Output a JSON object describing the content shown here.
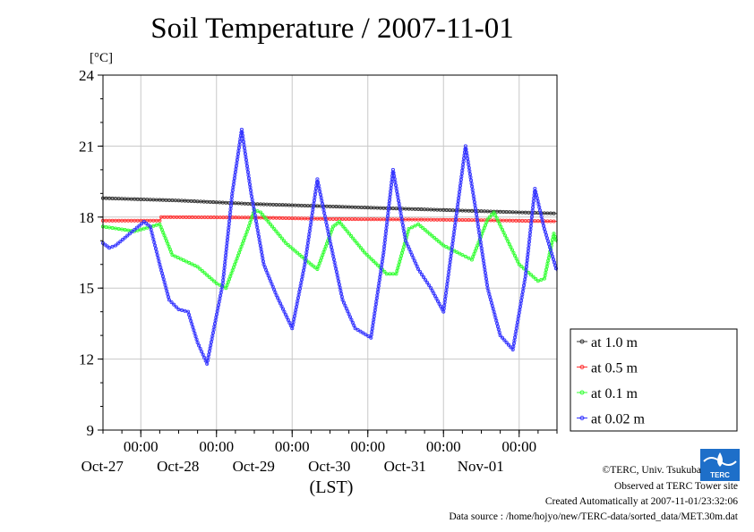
{
  "chart_data": {
    "type": "line",
    "title": "Soil Temperature / 2007-11-01",
    "ylabel": "[°C]",
    "xlabel": "(LST)",
    "ylim": [
      9,
      24
    ],
    "yticks": [
      "9",
      "12",
      "15",
      "18",
      "21",
      "24"
    ],
    "xlim": [
      "2007-10-26T12:00",
      "2007-11-01T12:00"
    ],
    "xticks": [
      {
        "t": "2007-10-27T00:00",
        "time": "00:00",
        "date": "Oct-27"
      },
      {
        "t": "2007-10-28T00:00",
        "time": "00:00",
        "date": "Oct-28"
      },
      {
        "t": "2007-10-29T00:00",
        "time": "00:00",
        "date": "Oct-29"
      },
      {
        "t": "2007-10-30T00:00",
        "time": "00:00",
        "date": "Oct-30"
      },
      {
        "t": "2007-10-31T00:00",
        "time": "00:00",
        "date": "Oct-31"
      },
      {
        "t": "2007-11-01T00:00",
        "time": "00:00",
        "date": "Nov-01"
      }
    ],
    "grid": true,
    "legend_position": "right",
    "series": [
      {
        "name": "at 1.0 m",
        "color": "#333333",
        "points": [
          [
            "2007-10-26T12:00",
            18.8
          ],
          [
            "2007-10-27T12:00",
            18.7
          ],
          [
            "2007-10-28T12:00",
            18.55
          ],
          [
            "2007-10-29T12:00",
            18.45
          ],
          [
            "2007-10-30T12:00",
            18.35
          ],
          [
            "2007-10-31T12:00",
            18.25
          ],
          [
            "2007-11-01T12:00",
            18.15
          ]
        ]
      },
      {
        "name": "at 0.5 m",
        "color": "#ff3333",
        "points": [
          [
            "2007-10-26T12:00",
            17.85
          ],
          [
            "2007-10-27T06:00",
            17.85
          ],
          [
            "2007-10-27T06:30",
            18.0
          ],
          [
            "2007-10-28T12:00",
            17.98
          ],
          [
            "2007-10-29T12:00",
            17.92
          ],
          [
            "2007-10-30T12:00",
            17.9
          ],
          [
            "2007-10-31T12:00",
            17.87
          ],
          [
            "2007-11-01T12:00",
            17.82
          ]
        ]
      },
      {
        "name": "at 0.1 m",
        "color": "#33ff33",
        "points": [
          [
            "2007-10-26T12:00",
            17.6
          ],
          [
            "2007-10-26T22:00",
            17.4
          ],
          [
            "2007-10-27T06:00",
            17.7
          ],
          [
            "2007-10-27T10:00",
            16.4
          ],
          [
            "2007-10-27T18:00",
            15.9
          ],
          [
            "2007-10-28T00:00",
            15.2
          ],
          [
            "2007-10-28T03:00",
            15.0
          ],
          [
            "2007-10-28T10:00",
            17.5
          ],
          [
            "2007-10-28T12:00",
            18.3
          ],
          [
            "2007-10-28T14:00",
            18.2
          ],
          [
            "2007-10-28T22:00",
            16.9
          ],
          [
            "2007-10-29T06:00",
            16.0
          ],
          [
            "2007-10-29T08:00",
            15.8
          ],
          [
            "2007-10-29T13:00",
            17.6
          ],
          [
            "2007-10-29T15:00",
            17.8
          ],
          [
            "2007-10-29T23:00",
            16.5
          ],
          [
            "2007-10-30T06:00",
            15.6
          ],
          [
            "2007-10-30T09:00",
            15.6
          ],
          [
            "2007-10-30T13:00",
            17.5
          ],
          [
            "2007-10-30T16:00",
            17.7
          ],
          [
            "2007-10-31T00:00",
            16.8
          ],
          [
            "2007-10-31T06:00",
            16.4
          ],
          [
            "2007-10-31T09:00",
            16.2
          ],
          [
            "2007-10-31T14:00",
            17.9
          ],
          [
            "2007-10-31T16:00",
            18.2
          ],
          [
            "2007-11-01T00:00",
            16.0
          ],
          [
            "2007-11-01T06:00",
            15.3
          ],
          [
            "2007-11-01T08:00",
            15.4
          ],
          [
            "2007-11-01T11:00",
            17.3
          ],
          [
            "2007-11-01T12:00",
            16.9
          ]
        ]
      },
      {
        "name": "at 0.02 m",
        "color": "#3333ff",
        "points": [
          [
            "2007-10-26T12:00",
            16.9
          ],
          [
            "2007-10-26T14:00",
            16.7
          ],
          [
            "2007-10-26T16:00",
            16.8
          ],
          [
            "2007-10-27T01:00",
            17.8
          ],
          [
            "2007-10-27T03:00",
            17.6
          ],
          [
            "2007-10-27T06:00",
            16.0
          ],
          [
            "2007-10-27T09:00",
            14.5
          ],
          [
            "2007-10-27T12:00",
            14.1
          ],
          [
            "2007-10-27T15:00",
            14.0
          ],
          [
            "2007-10-27T18:00",
            12.7
          ],
          [
            "2007-10-27T21:00",
            11.8
          ],
          [
            "2007-10-28T02:00",
            15.2
          ],
          [
            "2007-10-28T05:00",
            19.0
          ],
          [
            "2007-10-28T08:00",
            21.7
          ],
          [
            "2007-10-28T11:00",
            19.0
          ],
          [
            "2007-10-28T15:00",
            16.0
          ],
          [
            "2007-10-28T19:00",
            14.7
          ],
          [
            "2007-10-29T00:00",
            13.3
          ],
          [
            "2007-10-29T04:00",
            16.0
          ],
          [
            "2007-10-29T08:00",
            19.6
          ],
          [
            "2007-10-29T12:00",
            17.0
          ],
          [
            "2007-10-29T16:00",
            14.5
          ],
          [
            "2007-10-29T20:00",
            13.3
          ],
          [
            "2007-10-30T01:00",
            12.9
          ],
          [
            "2007-10-30T05:00",
            16.5
          ],
          [
            "2007-10-30T08:00",
            20.0
          ],
          [
            "2007-10-30T12:00",
            17.0
          ],
          [
            "2007-10-30T16:00",
            15.8
          ],
          [
            "2007-10-30T20:00",
            15.0
          ],
          [
            "2007-10-31T00:00",
            14.0
          ],
          [
            "2007-10-31T03:00",
            17.0
          ],
          [
            "2007-10-31T07:00",
            21.0
          ],
          [
            "2007-10-31T10:00",
            18.5
          ],
          [
            "2007-10-31T14:00",
            15.0
          ],
          [
            "2007-10-31T18:00",
            13.0
          ],
          [
            "2007-10-31T22:00",
            12.4
          ],
          [
            "2007-11-01T02:00",
            15.5
          ],
          [
            "2007-11-01T05:00",
            19.2
          ],
          [
            "2007-11-01T08:00",
            17.5
          ],
          [
            "2007-11-01T12:00",
            15.7
          ]
        ]
      }
    ]
  },
  "credits": {
    "copyright": "©TERC, Univ. Tsukuba",
    "site": "Observed at TERC Tower site",
    "created": "Created Automatically at 2007-11-01/23:32:06",
    "source": "Data source : /home/hojyo/new/TERC-data/sorted_data/MET.30m.dat",
    "logo_text": "TERC"
  }
}
